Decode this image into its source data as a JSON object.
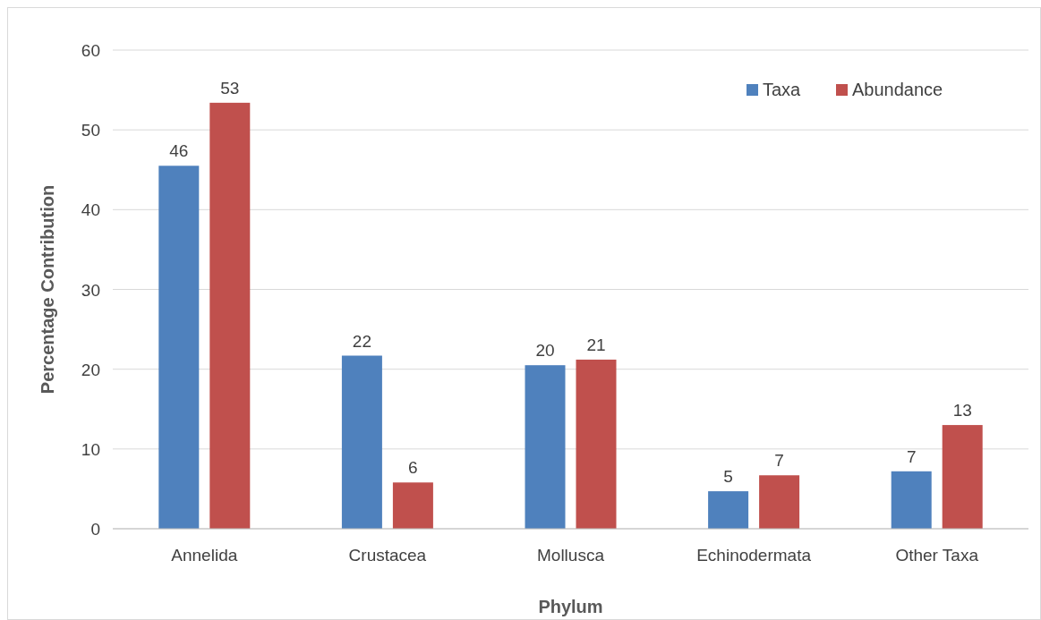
{
  "chart_data": {
    "type": "bar",
    "xlabel": "Phylum",
    "ylabel": "Percentage Contribution",
    "categories": [
      "Annelida",
      "Crustacea",
      "Mollusca",
      "Echinodermata",
      "Other Taxa"
    ],
    "series": [
      {
        "name": "Taxa",
        "color": "#4f81bd",
        "values": [
          45.5,
          21.7,
          20.5,
          4.7,
          7.2
        ],
        "value_labels": [
          "46",
          "22",
          "20",
          "5",
          "7"
        ]
      },
      {
        "name": "Abundance",
        "color": "#c0504d",
        "values": [
          53.4,
          5.8,
          21.2,
          6.7,
          13.0
        ],
        "value_labels": [
          "53",
          "6",
          "21",
          "7",
          "13"
        ]
      }
    ],
    "ylim": [
      0,
      60
    ],
    "yticks": [
      0,
      10,
      20,
      30,
      40,
      50,
      60
    ],
    "grid": "y",
    "legend": "top right"
  }
}
